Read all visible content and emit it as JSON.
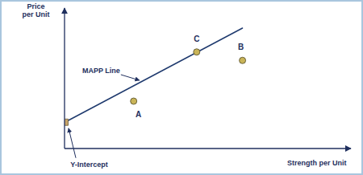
{
  "chart_data": {
    "type": "scatter",
    "x_label": "Strength per Unit",
    "y_label": "Price\nper Unit",
    "xlim": [
      0,
      10
    ],
    "ylim": [
      0,
      10
    ],
    "xticks": [],
    "yticks": [],
    "tick_labels": false,
    "series": [
      {
        "type": "line",
        "color": "#1f3a6e",
        "x": [
          0,
          6.2
        ],
        "values": [
          1.9,
          8.6
        ]
      },
      {
        "type": "scatter",
        "marker": "square",
        "color": "#c8a468",
        "x": [
          0
        ],
        "values": [
          1.9
        ]
      },
      {
        "type": "scatter",
        "marker": "circle",
        "color": "#c9b458",
        "labels": [
          "A",
          "B",
          "C"
        ],
        "x": [
          2.4,
          6.2,
          4.6
        ],
        "values": [
          3.4,
          6.3,
          6.9
        ]
      }
    ],
    "annotations": [
      {
        "text": "MAPP Line",
        "x": 2.7,
        "y": 4.8
      },
      {
        "text": "Y-Intercept",
        "x": 0,
        "y": 1.9
      }
    ]
  }
}
